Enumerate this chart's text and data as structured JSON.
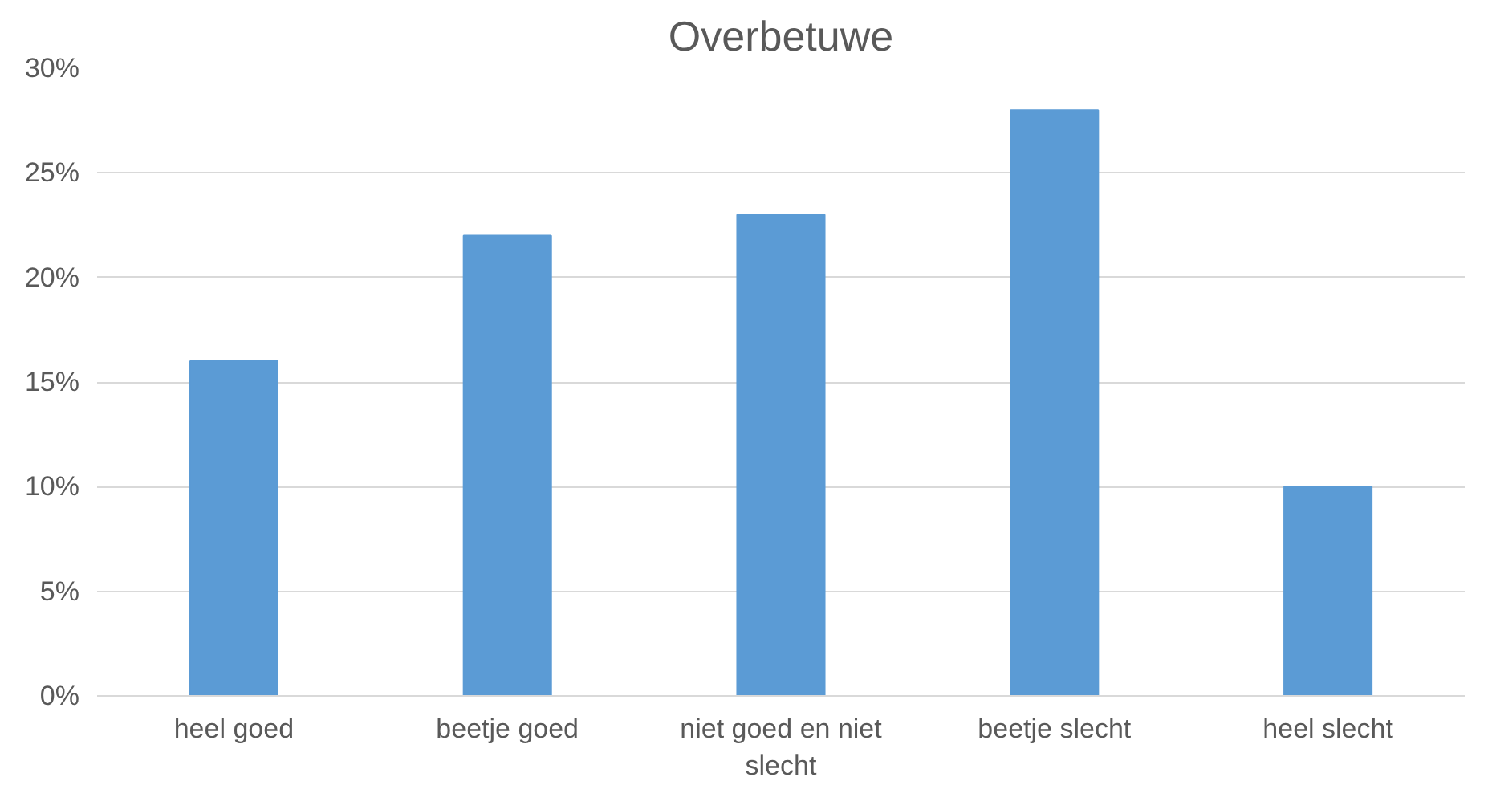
{
  "chart_data": {
    "type": "bar",
    "title": "Overbetuwe",
    "categories": [
      "heel goed",
      "beetje goed",
      "niet goed en niet slecht",
      "beetje slecht",
      "heel slecht"
    ],
    "values": [
      16,
      22,
      23,
      28,
      10
    ],
    "color": "#5b9bd5",
    "ylim": [
      0,
      30
    ],
    "yticks": [
      {
        "value": 0,
        "label": "0%"
      },
      {
        "value": 5,
        "label": "5%"
      },
      {
        "value": 10,
        "label": "10%"
      },
      {
        "value": 15,
        "label": "15%"
      },
      {
        "value": 20,
        "label": "20%"
      },
      {
        "value": 25,
        "label": "25%"
      },
      {
        "value": 30,
        "label": "30%"
      }
    ],
    "grid": "y"
  }
}
